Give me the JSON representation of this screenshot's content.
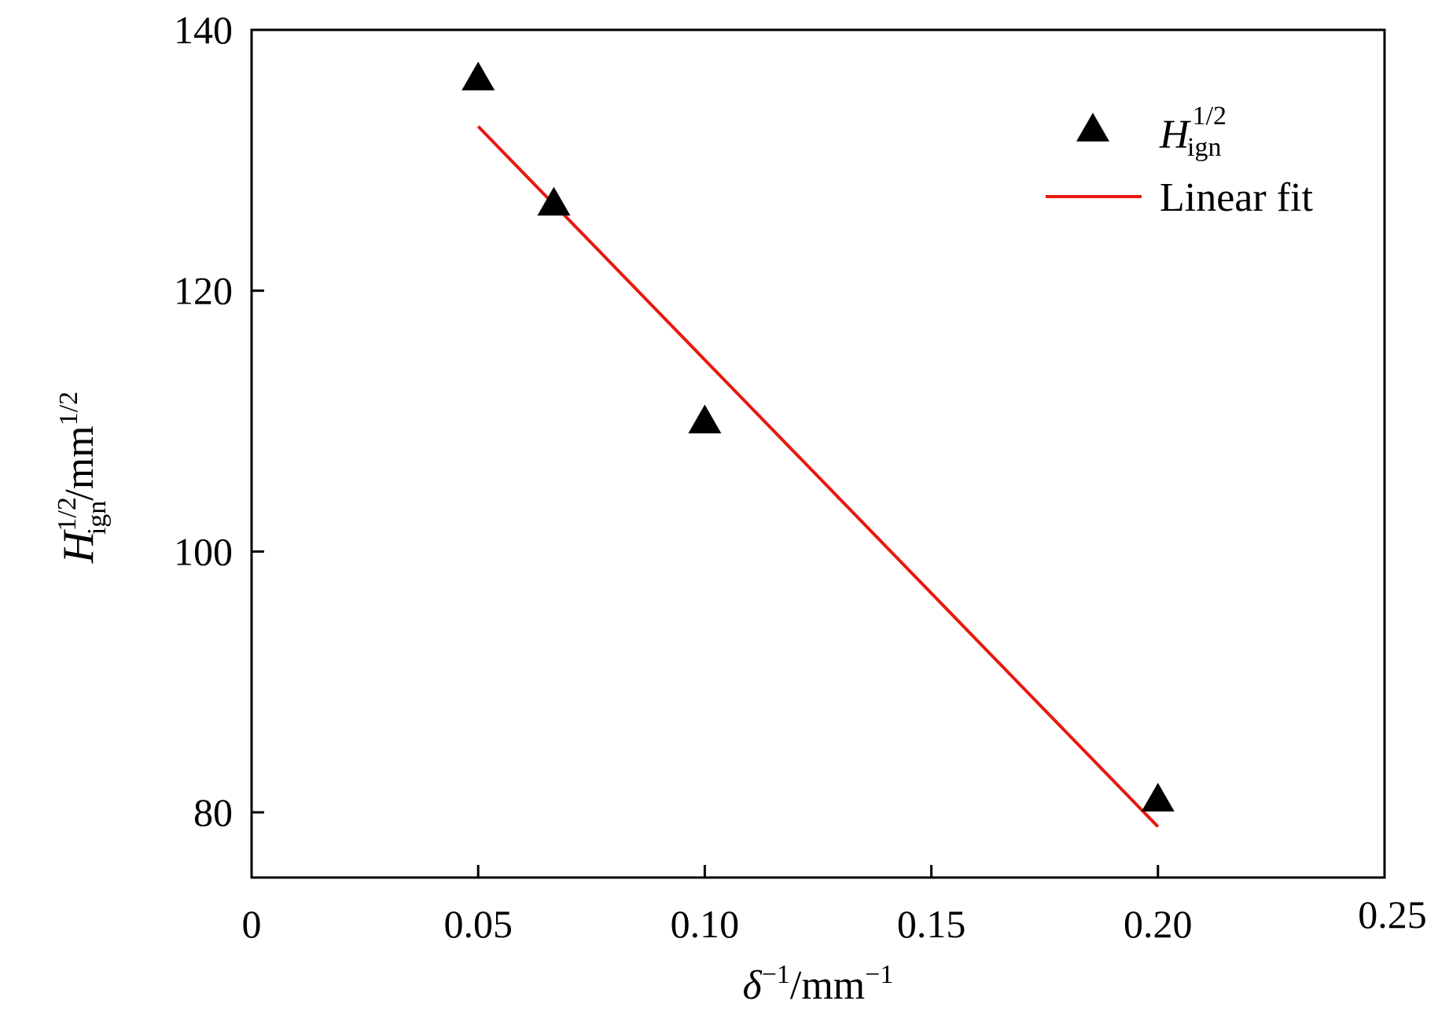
{
  "chart_data": {
    "type": "scatter",
    "title": "",
    "xlim": [
      0,
      0.25
    ],
    "ylim": [
      75,
      140
    ],
    "xticks": [
      {
        "value": 0,
        "label": "0"
      },
      {
        "value": 0.05,
        "label": "0.05"
      },
      {
        "value": 0.1,
        "label": "0.10"
      },
      {
        "value": 0.15,
        "label": "0.15"
      },
      {
        "value": 0.2,
        "label": "0.20"
      },
      {
        "value": 0.25,
        "label": "0.25"
      }
    ],
    "yticks": [
      {
        "value": 80,
        "label": "80"
      },
      {
        "value": 100,
        "label": "100"
      },
      {
        "value": 120,
        "label": "120"
      },
      {
        "value": 140,
        "label": "140"
      }
    ],
    "xlabel": {
      "symbol": "δ",
      "sup1": "−1",
      "unit": "/mm",
      "sup2": "−1"
    },
    "ylabel": {
      "symbol": "H",
      "sub": "ign",
      "sup": "1/2",
      "unit": "/mm",
      "unit_sup": "1/2"
    },
    "grid": false,
    "legend_position": "top-right",
    "series": [
      {
        "name": "H_ign^1/2",
        "legend": {
          "symbol": "H",
          "sub": "ign",
          "sup": "1/2"
        },
        "marker": "triangle",
        "color": "#000000",
        "x": [
          0.05,
          0.0667,
          0.1,
          0.2
        ],
        "y": [
          136.2,
          126.6,
          109.9,
          80.9
        ]
      },
      {
        "name": "Linear fit",
        "legend": {
          "label": "Linear fit"
        },
        "style": "line",
        "color": "#e8190e",
        "x": [
          0.05,
          0.2
        ],
        "y": [
          132.6,
          78.9
        ]
      }
    ]
  }
}
